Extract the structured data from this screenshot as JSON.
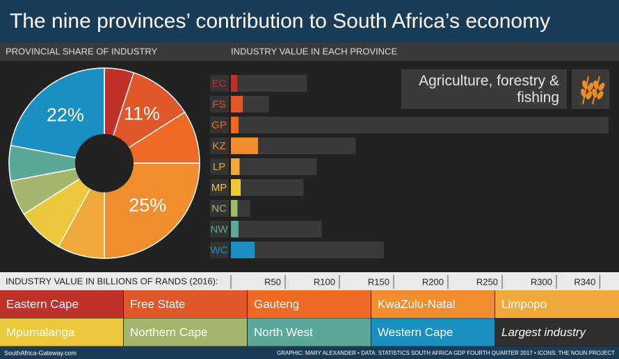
{
  "header": {
    "title": "The nine provinces’ contribution to South Africa’s economy"
  },
  "chart_data": [
    {
      "type": "pie",
      "donut": true,
      "title": "PROVINCIAL SHARE OF INDUSTRY",
      "categories": [
        "Eastern Cape",
        "Free State",
        "Gauteng",
        "KwaZulu-Natal",
        "Limpopo",
        "Mpumalanga",
        "Northern Cape",
        "North West",
        "Western Cape"
      ],
      "values": [
        5,
        11,
        9,
        25,
        8,
        8,
        6,
        6,
        22
      ],
      "value_labels": [
        null,
        "11%",
        null,
        "25%",
        null,
        null,
        null,
        null,
        "22%"
      ],
      "colors": [
        "#c0312a",
        "#e0572a",
        "#ee6a24",
        "#f08d2e",
        "#efa83a",
        "#ecc83c",
        "#a2b76b",
        "#5ba79a",
        "#1a90c2"
      ]
    },
    {
      "type": "bar",
      "orientation": "horizontal",
      "title": "INDUSTRY VALUE IN EACH PROVINCE",
      "x_label": "INDUSTRY VALUE IN BILLIONS OF RANDS (2016):",
      "categories": [
        "EC",
        "FS",
        "GP",
        "KZ",
        "LP",
        "MP",
        "NC",
        "NW",
        "WC"
      ],
      "series": [
        {
          "name": "Agriculture, forestry & fishing",
          "colors": [
            "#c0312a",
            "#e0572a",
            "#ee6a24",
            "#f08d2e",
            "#efa83a",
            "#ecc83c",
            "#a2b76b",
            "#5ba79a",
            "#1a90c2"
          ],
          "values": [
            6,
            11,
            7,
            25,
            8,
            9,
            6,
            7,
            22
          ]
        },
        {
          "name": "Largest industry",
          "color": "#3a3a3a",
          "values": [
            70,
            35,
            348,
            115,
            79,
            67,
            18,
            84,
            141
          ]
        }
      ],
      "xlim": [
        0,
        350
      ],
      "xticks": [
        {
          "value": 50,
          "label": "R50"
        },
        {
          "value": 100,
          "label": "R100"
        },
        {
          "value": 150,
          "label": "R150"
        },
        {
          "value": 200,
          "label": "R200"
        },
        {
          "value": 250,
          "label": "R250"
        },
        {
          "value": 300,
          "label": "R300"
        },
        {
          "value": 340,
          "label": "R340"
        }
      ]
    }
  ],
  "footer": {
    "source": "SouthAfrica-Gateway.com",
    "credits": "GRAPHIC: MARY ALEXANDER • DATA: STATISTICS SOUTH AFRICA GDP FOURTH QUARTER 2017 • ICONS: THE NOUN PROJECT"
  }
}
